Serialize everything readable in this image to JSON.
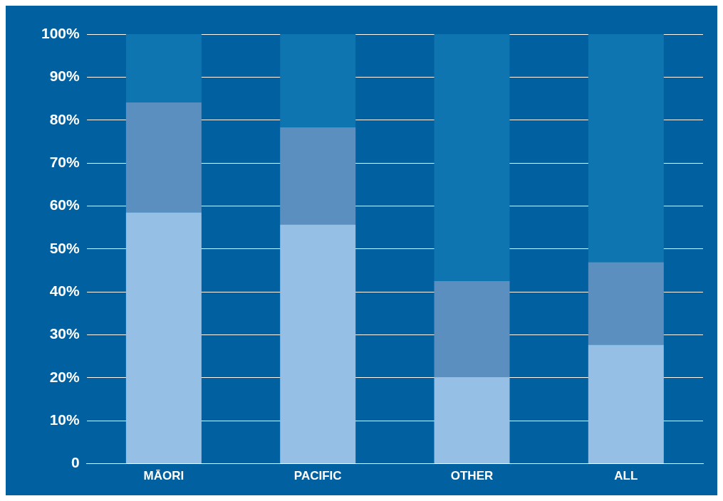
{
  "chart_data": {
    "type": "bar",
    "stacked": true,
    "categories": [
      "MĀORI",
      "PACIFIC",
      "OTHER",
      "ALL"
    ],
    "series": [
      {
        "color": "#95bfe4",
        "values": [
          58.5,
          55.7,
          20.2,
          27.7
        ]
      },
      {
        "color": "#5a8fbf",
        "values": [
          25.6,
          22.6,
          22.3,
          19.2
        ]
      },
      {
        "color": "#0f75b0",
        "values": [
          15.9,
          21.7,
          57.5,
          53.1
        ]
      }
    ],
    "ylim": [
      0,
      100
    ],
    "yticks": [
      0,
      {
        "value": 10,
        "label": "10%"
      },
      {
        "value": 20,
        "label": "20%"
      },
      {
        "value": 30,
        "label": "30%"
      },
      {
        "value": 40,
        "label": "40%"
      },
      {
        "value": 50,
        "label": "50%"
      },
      {
        "value": 60,
        "label": "60%"
      },
      {
        "value": 70,
        "label": "70%"
      },
      {
        "value": 80,
        "label": "80%"
      },
      {
        "value": 90,
        "label": "90%"
      },
      {
        "value": 100,
        "label": "100%"
      }
    ],
    "grid": "y",
    "legend": false
  }
}
